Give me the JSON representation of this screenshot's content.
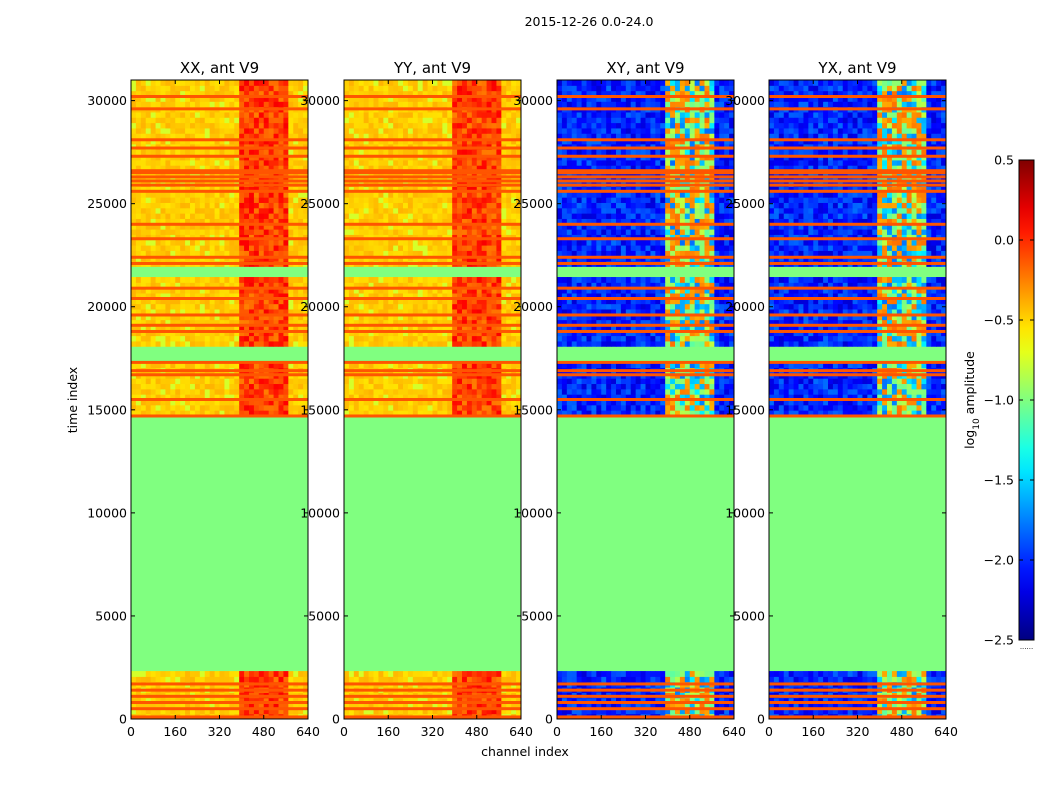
{
  "figure": {
    "suptitle": "2015-12-26 0.0-24.0"
  },
  "chart_data": {
    "type": "heatmap",
    "xlabel": "channel index",
    "ylabel": "time index",
    "xlim": [
      0,
      640
    ],
    "ylim": [
      0,
      31000
    ],
    "xticks": [
      0,
      160,
      320,
      480,
      640
    ],
    "yticks": [
      0,
      5000,
      10000,
      15000,
      20000,
      25000,
      30000
    ],
    "panels": [
      {
        "title": "XX, ant V9",
        "kind": "auto"
      },
      {
        "title": "YY, ant V9",
        "kind": "auto"
      },
      {
        "title": "XY, ant V9",
        "kind": "cross"
      },
      {
        "title": "YX, ant V9",
        "kind": "cross"
      }
    ],
    "colorbar": {
      "label": "log10 amplitude",
      "label_base": "log",
      "label_sub": "10",
      "label_rest": " amplitude",
      "min": -2.5,
      "max": 0.5,
      "ticks": [
        0.5,
        0.0,
        -0.5,
        -1.0,
        -1.5,
        -2.0,
        -2.5
      ],
      "tick_labels": [
        "0.5",
        "0.0",
        "−0.5",
        "−1.0",
        "−1.5",
        "−2.0",
        "−2.5"
      ],
      "extra_text": "......"
    },
    "flag_fill_value": -1.0,
    "flagged_time_ranges": [
      [
        2200,
        14600
      ],
      [
        17400,
        18000
      ],
      [
        21500,
        22000
      ],
      [
        26000,
        26200
      ]
    ],
    "flag_lines_time": [
      100,
      500,
      800,
      1100,
      1400,
      1700,
      14700,
      15500,
      16700,
      16900,
      17300,
      18800,
      19100,
      19600,
      20400,
      20900,
      22100,
      22400,
      23300,
      24000,
      25600,
      25900,
      26100,
      26300,
      26500,
      26600,
      27300,
      27700,
      28100,
      29600,
      30200
    ],
    "bright_channel_range": [
      400,
      560
    ]
  },
  "colors": {
    "flag_line": "#ff5500",
    "flag_fill": "#7fff7f"
  }
}
